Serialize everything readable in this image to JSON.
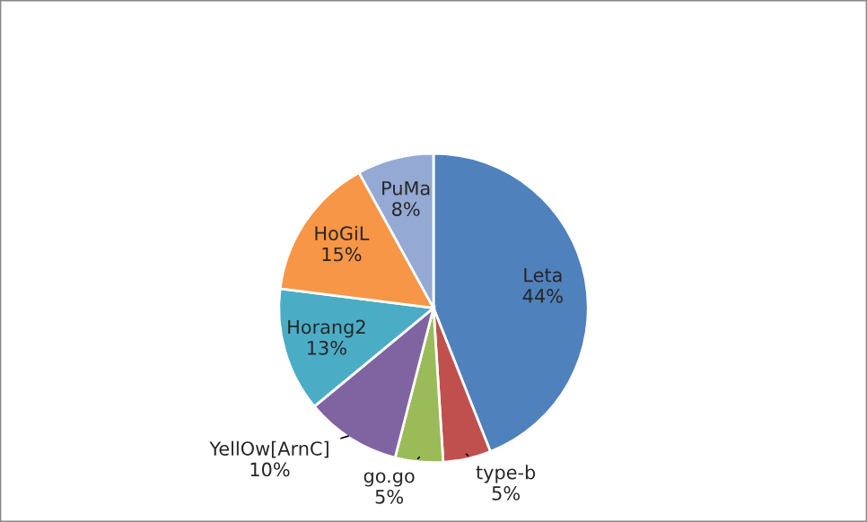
{
  "chart_data": {
    "type": "pie",
    "categories": [
      "Leta",
      "type-b",
      "go.go",
      "YellOw[ArnC]",
      "Horang2",
      "HoGiL",
      "PuMa"
    ],
    "values": [
      44,
      5,
      5,
      10,
      13,
      15,
      8
    ],
    "value_labels": [
      "44%",
      "5%",
      "5%",
      "10%",
      "13%",
      "15%",
      "8%"
    ],
    "colors": [
      "#4f81bd",
      "#c0504d",
      "#9bbb59",
      "#8064a2",
      "#4bacc6",
      "#f79646",
      "#94a9d4"
    ],
    "legend": false
  }
}
